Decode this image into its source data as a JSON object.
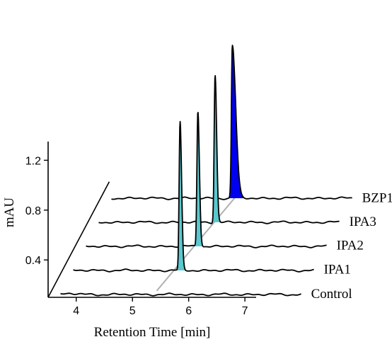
{
  "chart_data": {
    "type": "line",
    "style": "waterfall-3d",
    "xlabel": "Retention Time [min]",
    "ylabel": "mAU",
    "x_ticks": [
      4,
      5,
      6,
      7
    ],
    "y_ticks": [
      0.4,
      0.8,
      1.2
    ],
    "xlim": [
      3.5,
      7.2
    ],
    "ylim": [
      0.1,
      1.35
    ],
    "colors": {
      "fill_light": "#5bc8cf",
      "fill_dark": "#0000ee",
      "line": "#000000",
      "trend": "#b0b0b0"
    },
    "series": [
      {
        "name": "Control",
        "peak_x": null,
        "peak_height": 0.0,
        "fill": null
      },
      {
        "name": "IPA1",
        "peak_x": 5.62,
        "peak_height": 0.95,
        "fill": "fill_light"
      },
      {
        "name": "IPA2",
        "peak_x": 5.71,
        "peak_height": 0.87,
        "fill": "fill_light"
      },
      {
        "name": "IPA3",
        "peak_x": 5.79,
        "peak_height": 0.95,
        "fill": "fill_light"
      },
      {
        "name": "BZP1",
        "peak_x": 5.87,
        "peak_height": 0.98,
        "fill": "fill_dark"
      }
    ]
  }
}
